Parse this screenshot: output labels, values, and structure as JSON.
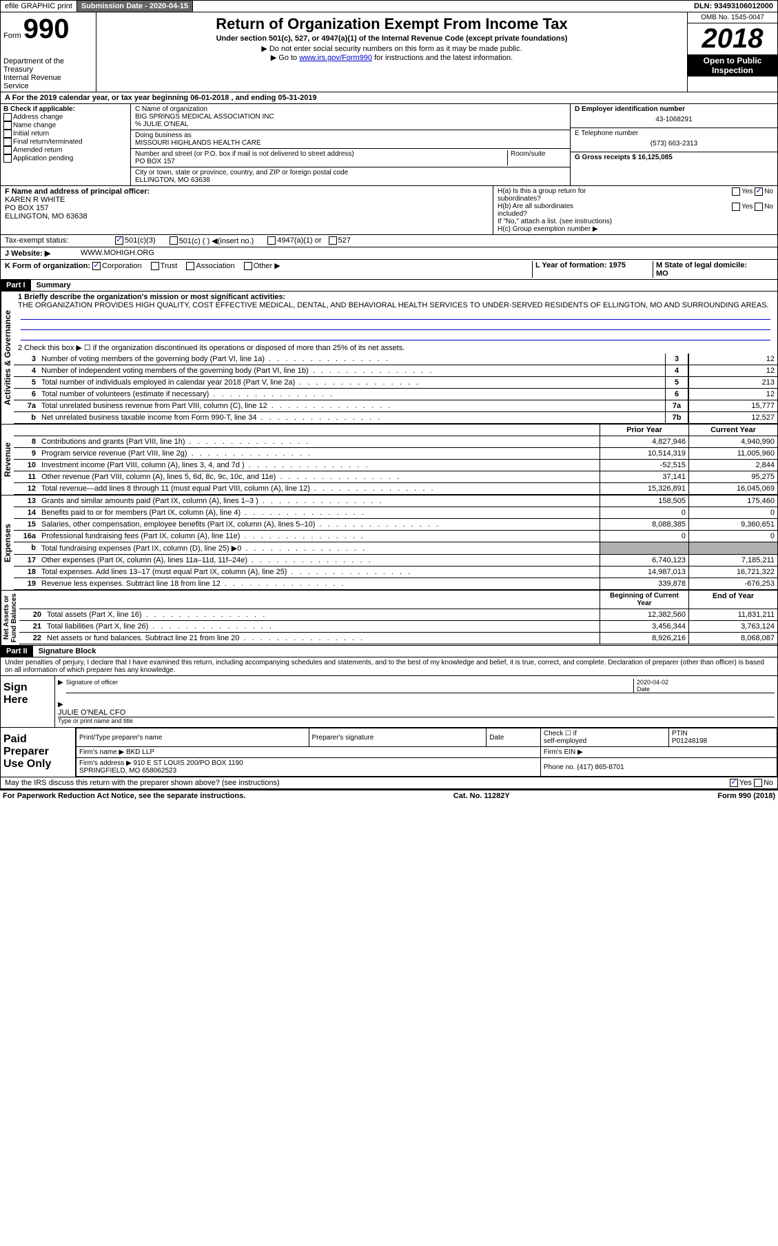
{
  "topbar": {
    "efile": "efile GRAPHIC print",
    "sub_label": "Submission Date - 2020-04-15",
    "dln": "DLN: 93493106012000"
  },
  "header": {
    "form_label": "Form",
    "form_number": "990",
    "dept": "Department of the Treasury\nInternal Revenue\nService",
    "title": "Return of Organization Exempt From Income Tax",
    "subtitle": "Under section 501(c), 527, or 4947(a)(1) of the Internal Revenue Code (except private foundations)",
    "instr1": "▶ Do not enter social security numbers on this form as it may be made public.",
    "instr2_pre": "▶ Go to ",
    "instr2_link": "www.irs.gov/Form990",
    "instr2_post": " for instructions and the latest information.",
    "omb": "OMB No. 1545-0047",
    "year": "2018",
    "open": "Open to Public\nInspection"
  },
  "section_a": {
    "a_text": "A For the 2019 calendar year, or tax year beginning 06-01-2018    , and ending 05-31-2019",
    "b_label": "B Check if applicable:",
    "b_items": [
      "Address change",
      "Name change",
      "Initial return",
      "Final return/terminated",
      "Amended return",
      "Application pending"
    ],
    "c_label": "C Name of organization",
    "c_name": "BIG SPRINGS MEDICAL ASSOCIATION INC",
    "c_care_label": "% JULIE O'NEAL",
    "dba_label": "Doing business as",
    "dba": "MISSOURI HIGHLANDS HEALTH CARE",
    "addr_label": "Number and street (or P.O. box if mail is not delivered to street address)",
    "room_label": "Room/suite",
    "addr": "PO BOX 157",
    "city_label": "City or town, state or province, country, and ZIP or foreign postal code",
    "city": "ELLINGTON, MO  63638",
    "d_label": "D Employer identification number",
    "d_val": "43-1068291",
    "e_label": "E Telephone number",
    "e_val": "(573) 663-2313",
    "g_label": "G Gross receipts $ 16,125,085",
    "f_label": "F  Name and address of principal officer:",
    "f_name": "KAREN R WHITE\nPO BOX 157\nELLINGTON, MO  63638",
    "h_a": "H(a)  Is this a group return for\nsubordinates?",
    "h_b": "H(b)  Are all subordinates\nincluded?",
    "h_note": "If \"No,\" attach a list. (see instructions)",
    "h_c": "H(c)  Group exemption number ▶",
    "yes": "Yes",
    "no": "No",
    "i_label": "Tax-exempt status:",
    "i_opts": [
      "501(c)(3)",
      "501(c) (  ) ◀(insert no.)",
      "4947(a)(1) or",
      "527"
    ],
    "j_label": "J    Website: ▶",
    "j_val": "WWW.MOHIGH.ORG",
    "k_label": "K Form of organization:",
    "k_opts": [
      "Corporation",
      "Trust",
      "Association",
      "Other ▶"
    ],
    "l_label": "L Year of formation: 1975",
    "m_label": "M State of legal domicile:\nMO"
  },
  "part1": {
    "header": "Part I",
    "title": "Summary",
    "line1_label": "1   Briefly describe the organization's mission or most significant activities:",
    "line1_text": "THE ORGANIZATION PROVIDES HIGH QUALITY, COST EFFECTIVE MEDICAL, DENTAL, AND BEHAVIORAL HEALTH SERVICES TO UNDER-SERVED RESIDENTS OF ELLINGTON, MO AND SURROUNDING AREAS.",
    "line2_label": "2     Check this box ▶ ☐  if the organization discontinued its operations or disposed of more than 25% of its net assets.",
    "side_labels": {
      "governance": "Activities & Governance",
      "revenue": "Revenue",
      "expenses": "Expenses",
      "netassets": "Net Assets or\nFund Balances"
    },
    "gov_lines": [
      {
        "n": "3",
        "t": "Number of voting members of the governing body (Part VI, line 1a)",
        "b": "3",
        "v": "12"
      },
      {
        "n": "4",
        "t": "Number of independent voting members of the governing body (Part VI, line 1b)",
        "b": "4",
        "v": "12"
      },
      {
        "n": "5",
        "t": "Total number of individuals employed in calendar year 2018 (Part V, line 2a)",
        "b": "5",
        "v": "213"
      },
      {
        "n": "6",
        "t": "Total number of volunteers (estimate if necessary)",
        "b": "6",
        "v": "12"
      },
      {
        "n": "7a",
        "t": "Total unrelated business revenue from Part VIII, column (C), line 12",
        "b": "7a",
        "v": "15,777"
      },
      {
        "n": "b",
        "t": "Net unrelated business taxable income from Form 990-T, line 34",
        "b": "7b",
        "v": "12,527"
      }
    ],
    "rev_header": {
      "prior": "Prior Year",
      "current": "Current Year"
    },
    "rev_lines": [
      {
        "n": "8",
        "t": "Contributions and grants (Part VIII, line 1h)",
        "p": "4,827,946",
        "c": "4,940,990"
      },
      {
        "n": "9",
        "t": "Program service revenue (Part VIII, line 2g)",
        "p": "10,514,319",
        "c": "11,005,960"
      },
      {
        "n": "10",
        "t": "Investment income (Part VIII, column (A), lines 3, 4, and 7d )",
        "p": "-52,515",
        "c": "2,844"
      },
      {
        "n": "11",
        "t": "Other revenue (Part VIII, column (A), lines 5, 6d, 8c, 9c, 10c, and 11e)",
        "p": "37,141",
        "c": "95,275"
      },
      {
        "n": "12",
        "t": "Total revenue—add lines 8 through 11 (must equal Part VIII, column (A), line 12)",
        "p": "15,326,891",
        "c": "16,045,069"
      }
    ],
    "exp_lines": [
      {
        "n": "13",
        "t": "Grants and similar amounts paid (Part IX, column (A), lines 1–3 )",
        "p": "158,505",
        "c": "175,460"
      },
      {
        "n": "14",
        "t": "Benefits paid to or for members (Part IX, column (A), line 4)",
        "p": "0",
        "c": "0"
      },
      {
        "n": "15",
        "t": "Salaries, other compensation, employee benefits (Part IX, column (A), lines 5–10)",
        "p": "8,088,385",
        "c": "9,360,651"
      },
      {
        "n": "16a",
        "t": "Professional fundraising fees (Part IX, column (A), line 11e)",
        "p": "0",
        "c": "0"
      },
      {
        "n": "b",
        "t": "Total fundraising expenses (Part IX, column (D), line 25)  ▶0",
        "p": "",
        "c": "",
        "gray": true
      },
      {
        "n": "17",
        "t": "Other expenses (Part IX, column (A), lines 11a–11d, 11f–24e)",
        "p": "6,740,123",
        "c": "7,185,211"
      },
      {
        "n": "18",
        "t": "Total expenses. Add lines 13–17 (must equal Part IX, column (A), line 25)",
        "p": "14,987,013",
        "c": "16,721,322"
      },
      {
        "n": "19",
        "t": "Revenue less expenses. Subtract line 18 from line 12",
        "p": "339,878",
        "c": "-676,253"
      }
    ],
    "na_header": {
      "prior": "Beginning of Current Year",
      "current": "End of Year"
    },
    "na_lines": [
      {
        "n": "20",
        "t": "Total assets (Part X, line 16)",
        "p": "12,382,560",
        "c": "11,831,211"
      },
      {
        "n": "21",
        "t": "Total liabilities (Part X, line 26)",
        "p": "3,456,344",
        "c": "3,763,124"
      },
      {
        "n": "22",
        "t": "Net assets or fund balances. Subtract line 21 from line 20",
        "p": "8,926,216",
        "c": "8,068,087"
      }
    ]
  },
  "part2": {
    "header": "Part II",
    "title": "Signature Block",
    "penalties": "Under penalties of perjury, I declare that I have examined this return, including accompanying schedules and statements, and to the best of my knowledge and belief, it is true, correct, and complete. Declaration of preparer (other than officer) is based on all information of which preparer has any knowledge.",
    "sign_here": "Sign\nHere",
    "sig_officer_label": "Signature of officer",
    "date_label": "Date",
    "sig_date": "2020-04-02",
    "name_title": "JULIE O'NEAL  CFO",
    "name_title_label": "Type or print name and title",
    "paid_prep": "Paid\nPreparer\nUse Only",
    "prep_cols": [
      "Print/Type preparer's name",
      "Preparer's signature",
      "Date"
    ],
    "check_label": "Check ☐ if\nself-employed",
    "ptin_label": "PTIN",
    "ptin": "P01248198",
    "firm_name_label": "Firm's name      ▶",
    "firm_name": "BKD LLP",
    "firm_ein_label": "Firm's EIN ▶",
    "firm_addr_label": "Firm's address ▶",
    "firm_addr": "910 E ST LOUIS 200/PO BOX 1190\nSPRINGFIELD, MO  658062523",
    "phone_label": "Phone no. (417) 865-8701",
    "discuss": "May the IRS discuss this return with the preparer shown above? (see instructions)"
  },
  "footer": {
    "left": "For Paperwork Reduction Act Notice, see the separate instructions.",
    "mid": "Cat. No. 11282Y",
    "right": "Form 990 (2018)"
  }
}
